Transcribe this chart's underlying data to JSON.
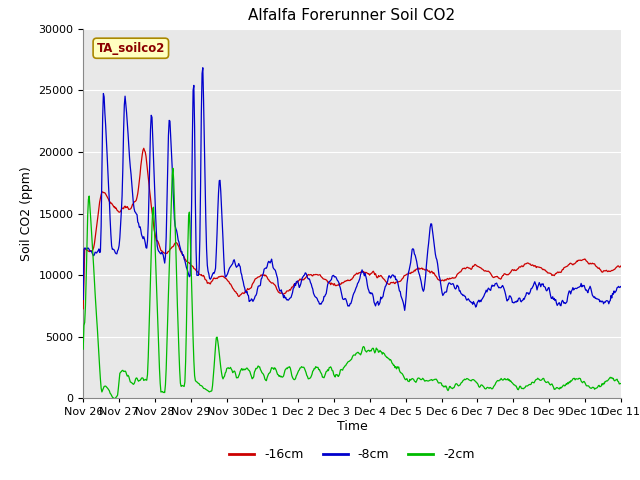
{
  "title": "Alfalfa Forerunner Soil CO2",
  "ylabel": "Soil CO2 (ppm)",
  "xlabel": "Time",
  "annotation": "TA_soilco2",
  "ylim": [
    0,
    30000
  ],
  "yticks": [
    0,
    5000,
    10000,
    15000,
    20000,
    25000,
    30000
  ],
  "xtick_labels": [
    "Nov 26",
    "Nov 27",
    "Nov 28",
    "Nov 29",
    "Nov 30",
    "Dec 1",
    "Dec 2",
    "Dec 3",
    "Dec 4",
    "Dec 5",
    "Dec 6",
    "Dec 7",
    "Dec 8",
    "Dec 9",
    "Dec 10",
    "Dec 11"
  ],
  "line_colors": {
    "d16cm": "#cc0000",
    "d8cm": "#0000cc",
    "d2cm": "#00bb00"
  },
  "legend_labels": [
    "-16cm",
    "-8cm",
    "-2cm"
  ],
  "fig_bg_color": "#ffffff",
  "plot_bg_color": "#e8e8e8",
  "grid_color": "#ffffff",
  "title_fontsize": 11,
  "axis_label_fontsize": 9,
  "tick_fontsize": 8
}
